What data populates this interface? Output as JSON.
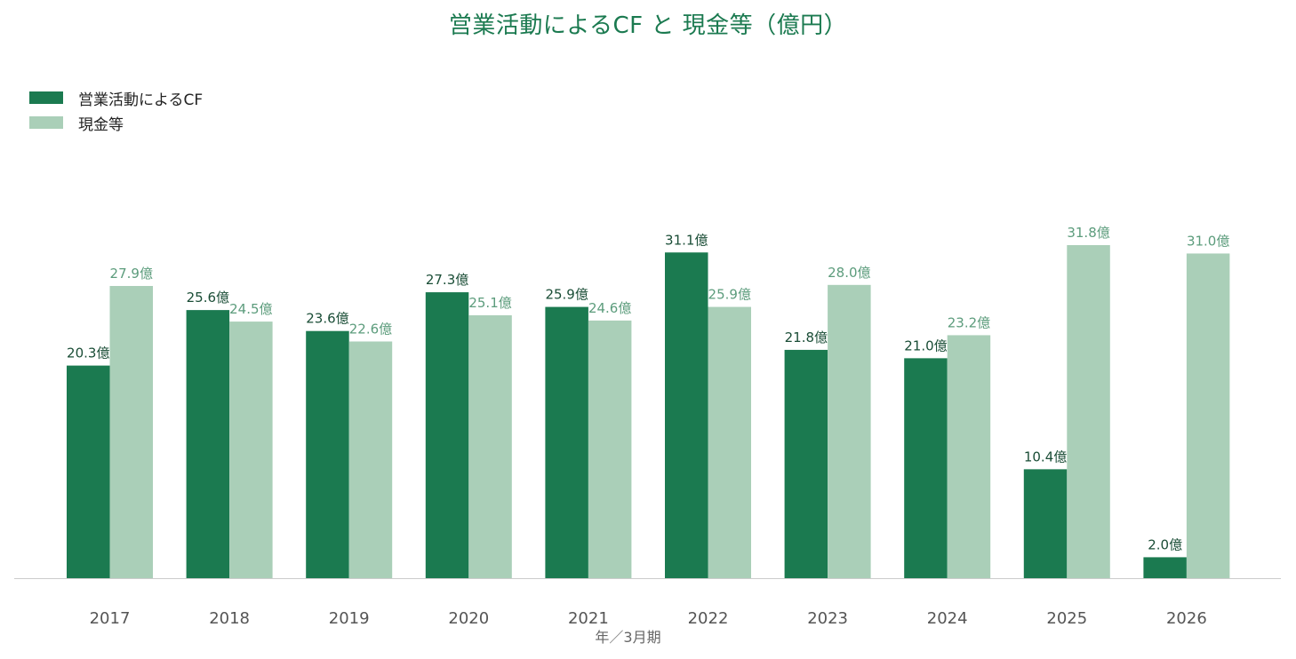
{
  "chart_data": {
    "type": "bar",
    "title": "営業活動によるCF と 現金等（億円）",
    "xlabel": "年／3月期",
    "ylabel": "",
    "categories": [
      "2017",
      "2018",
      "2019",
      "2020",
      "2021",
      "2022",
      "2023",
      "2024",
      "2025",
      "2026"
    ],
    "series": [
      {
        "name": "営業活動によるCF",
        "color": "#1b7a50",
        "values": [
          20.3,
          25.6,
          23.6,
          27.3,
          25.9,
          31.1,
          21.8,
          21.0,
          10.4,
          2.0
        ],
        "labels": [
          "20.3億",
          "25.6億",
          "23.6億",
          "27.3億",
          "25.9億",
          "31.1億",
          "21.8億",
          "21.0億",
          "10.4億",
          "2.0億"
        ]
      },
      {
        "name": "現金等",
        "color": "#aacfb8",
        "values": [
          27.9,
          24.5,
          22.6,
          25.1,
          24.6,
          25.9,
          28.0,
          23.2,
          31.8,
          31.0
        ],
        "labels": [
          "27.9億",
          "24.5億",
          "22.6億",
          "25.1億",
          "24.6億",
          "25.9億",
          "28.0億",
          "23.2億",
          "31.8億",
          "31.0億"
        ]
      }
    ],
    "ylim": [
      0,
      32
    ],
    "grid": false,
    "legend_position": "top-left"
  }
}
